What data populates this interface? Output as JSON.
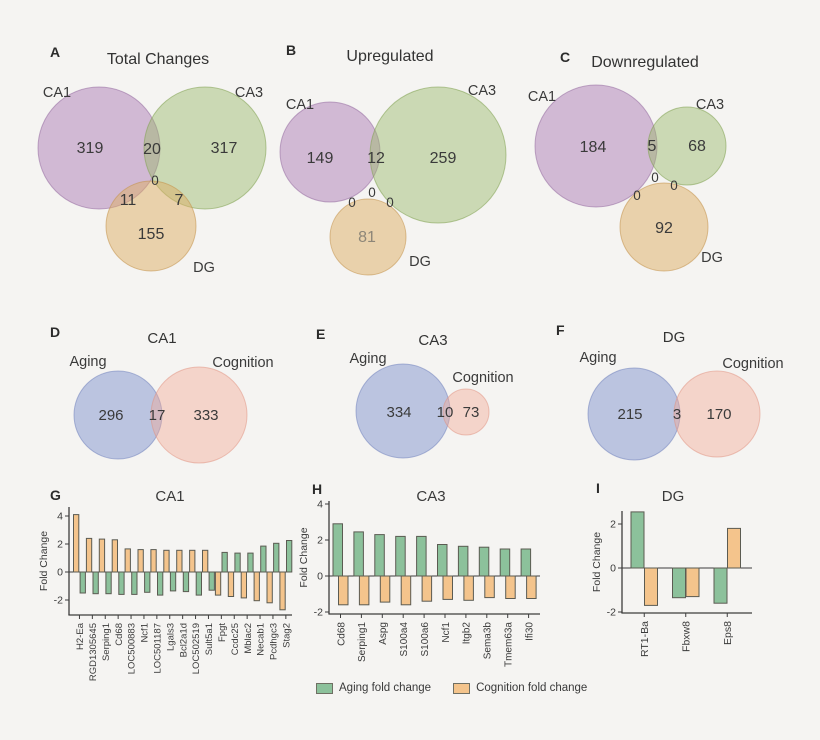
{
  "colors": {
    "background": "#f5f4f2",
    "venn_ca1": "#a979b3",
    "venn_ca3": "#9ab968",
    "venn_dg": "#ddae63",
    "venn_aging": "#8294cd",
    "venn_cognition": "#f2a694",
    "bar_aging": "#8cc19b",
    "bar_cognition": "#f4c48c"
  },
  "venns": [
    {
      "letter": "A",
      "title": "Total Changes",
      "set_labels": [
        "CA1",
        "CA3",
        "DG"
      ],
      "counts": {
        "a": "319",
        "ab": "20",
        "b": "317",
        "abc": "0",
        "ac": "11",
        "bc": "7",
        "c": "155"
      }
    },
    {
      "letter": "B",
      "title": "Upregulated",
      "set_labels": [
        "CA1",
        "CA3",
        "DG"
      ],
      "counts": {
        "a": "149",
        "ab": "12",
        "b": "259",
        "ac": "0",
        "abc": "0",
        "bc": "0",
        "c": "81"
      }
    },
    {
      "letter": "C",
      "title": "Downregulated",
      "set_labels": [
        "CA1",
        "CA3",
        "DG"
      ],
      "counts": {
        "a": "184",
        "ab": "5",
        "b": "68",
        "abc": "0",
        "bc": "0",
        "ac": "0",
        "c": "92"
      }
    },
    {
      "letter": "D",
      "title": "CA1",
      "set_labels": [
        "Aging",
        "Cognition"
      ],
      "counts": {
        "a": "296",
        "ab": "17",
        "b": "333"
      }
    },
    {
      "letter": "E",
      "title": "CA3",
      "set_labels": [
        "Aging",
        "Cognition"
      ],
      "counts": {
        "a": "334",
        "ab": "10",
        "b": "73"
      }
    },
    {
      "letter": "F",
      "title": "DG",
      "set_labels": [
        "Aging",
        "Cognition"
      ],
      "counts": {
        "a": "215",
        "ab": "3",
        "b": "170"
      }
    }
  ],
  "chart_data": [
    {
      "type": "bar",
      "panel": "G",
      "title": "CA1",
      "ylabel": "Fold Change",
      "yticks": [
        4,
        2,
        0,
        -2
      ],
      "ylim": [
        -3.2,
        4.6
      ],
      "categories": [
        "H2-Ea",
        "RGD1305645",
        "Serping1",
        "Cd68",
        "LOC500883",
        "Ncf1",
        "LOC501187",
        "Lgals3",
        "Bcl2a1d",
        "LOC502519",
        "Sult5a1",
        "Fpgt",
        "Ccdc25",
        "Mblac2",
        "Necab1",
        "Pcdhgc3",
        "Stag2"
      ],
      "series": [
        {
          "name": "Cognition fold change",
          "color": "#f4c48c",
          "values": [
            4.1,
            2.4,
            2.35,
            2.3,
            1.65,
            1.6,
            1.6,
            1.55,
            1.55,
            1.55,
            1.55,
            -1.65,
            -1.75,
            -1.85,
            -2.05,
            -2.2,
            -2.7
          ]
        },
        {
          "name": "Aging fold change",
          "color": "#8cc19b",
          "values": [
            -1.5,
            -1.55,
            -1.55,
            -1.6,
            -1.6,
            -1.45,
            -1.65,
            -1.35,
            -1.4,
            -1.65,
            -1.3,
            1.4,
            1.35,
            1.35,
            1.85,
            2.05,
            2.25
          ]
        }
      ]
    },
    {
      "type": "bar",
      "panel": "H",
      "title": "CA3",
      "ylabel": "Fold Change",
      "yticks": [
        4,
        2,
        0,
        -2
      ],
      "ylim": [
        -2.2,
        4.6
      ],
      "categories": [
        "Cd68",
        "Serping1",
        "Aspg",
        "S100a4",
        "S100a6",
        "Ncf1",
        "Itgb2",
        "Sema3b",
        "Tmem63a",
        "Ifi30"
      ],
      "series": [
        {
          "name": "Aging fold change",
          "color": "#8cc19b",
          "values": [
            2.9,
            2.45,
            2.3,
            2.2,
            2.2,
            1.75,
            1.65,
            1.6,
            1.5,
            1.5
          ]
        },
        {
          "name": "Cognition fold change",
          "color": "#f4c48c",
          "values": [
            -1.6,
            -1.6,
            -1.45,
            -1.6,
            -1.4,
            -1.3,
            -1.35,
            -1.2,
            -1.25,
            -1.25
          ]
        }
      ]
    },
    {
      "type": "bar",
      "panel": "I",
      "title": "DG",
      "ylabel": "Fold Change",
      "yticks": [
        2,
        0,
        -2
      ],
      "ylim": [
        -2.1,
        2.9
      ],
      "categories": [
        "RT1-Ba",
        "Fbxw8",
        "Eps8"
      ],
      "series": [
        {
          "name": "Aging fold change",
          "color": "#8cc19b",
          "values": [
            2.55,
            -1.35,
            -1.6
          ]
        },
        {
          "name": "Cognition fold change",
          "color": "#f4c48c",
          "values": [
            -1.7,
            -1.3,
            1.8
          ]
        }
      ]
    }
  ],
  "legend": {
    "items": [
      {
        "label": "Aging fold change",
        "color": "#8cc19b"
      },
      {
        "label": "Cognition fold change",
        "color": "#f4c48c"
      }
    ]
  }
}
